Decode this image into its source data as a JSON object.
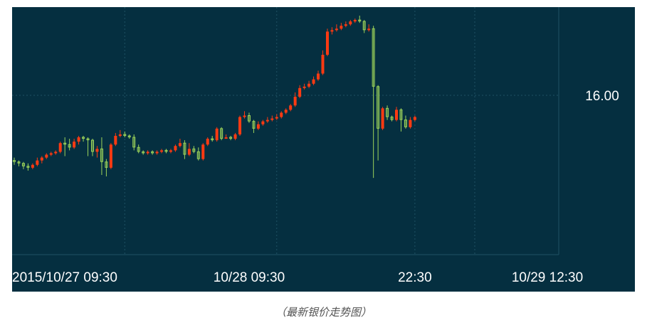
{
  "caption": "（最新银价走势图）",
  "chart_data": {
    "type": "candlestick",
    "title": "",
    "colors": {
      "background": "#052f40",
      "up": "#ff3a12",
      "down": "#9cd35a",
      "grid": "#1f5263",
      "text": "#ffffff"
    },
    "y_ticks": [
      16.0
    ],
    "y_tick_labels": [
      "16.00"
    ],
    "ylim": [
      14.9,
      16.55
    ],
    "grid": true,
    "x_tick_labels": [
      "2015/10/27 09:30",
      "10/28 09:30",
      "22:30",
      "10/29 12:30"
    ],
    "x_tick_index": [
      0,
      51,
      87,
      111
    ],
    "x_gridline_index": [
      24,
      57,
      87,
      100
    ],
    "candles": [
      [
        15.55,
        15.54,
        15.57,
        15.52
      ],
      [
        15.54,
        15.53,
        15.55,
        15.51
      ],
      [
        15.53,
        15.51,
        15.54,
        15.49
      ],
      [
        15.51,
        15.5,
        15.53,
        15.48
      ],
      [
        15.5,
        15.52,
        15.53,
        15.49
      ],
      [
        15.52,
        15.55,
        15.57,
        15.51
      ],
      [
        15.55,
        15.57,
        15.58,
        15.53
      ],
      [
        15.57,
        15.59,
        15.6,
        15.56
      ],
      [
        15.59,
        15.6,
        15.61,
        15.58
      ],
      [
        15.6,
        15.61,
        15.62,
        15.59
      ],
      [
        15.61,
        15.67,
        15.68,
        15.6
      ],
      [
        15.67,
        15.66,
        15.71,
        15.58
      ],
      [
        15.66,
        15.64,
        15.7,
        15.62
      ],
      [
        15.64,
        15.68,
        15.7,
        15.63
      ],
      [
        15.68,
        15.71,
        15.72,
        15.66
      ],
      [
        15.71,
        15.7,
        15.72,
        15.68
      ],
      [
        15.7,
        15.69,
        15.71,
        15.58
      ],
      [
        15.69,
        15.61,
        15.7,
        15.58
      ],
      [
        15.61,
        15.63,
        15.65,
        15.57
      ],
      [
        15.63,
        15.54,
        15.71,
        15.45
      ],
      [
        15.54,
        15.5,
        15.56,
        15.44
      ],
      [
        15.5,
        15.66,
        15.67,
        15.49
      ],
      [
        15.66,
        15.72,
        15.74,
        15.65
      ],
      [
        15.72,
        15.73,
        15.76,
        15.71
      ],
      [
        15.73,
        15.72,
        15.75,
        15.71
      ],
      [
        15.72,
        15.71,
        15.73,
        15.7
      ],
      [
        15.71,
        15.64,
        15.73,
        15.62
      ],
      [
        15.64,
        15.61,
        15.66,
        15.6
      ],
      [
        15.61,
        15.6,
        15.62,
        15.59
      ],
      [
        15.6,
        15.61,
        15.62,
        15.59
      ],
      [
        15.61,
        15.6,
        15.62,
        15.59
      ],
      [
        15.6,
        15.61,
        15.62,
        15.59
      ],
      [
        15.61,
        15.62,
        15.63,
        15.6
      ],
      [
        15.62,
        15.61,
        15.63,
        15.6
      ],
      [
        15.61,
        15.62,
        15.63,
        15.6
      ],
      [
        15.62,
        15.65,
        15.66,
        15.61
      ],
      [
        15.65,
        15.67,
        15.7,
        15.64
      ],
      [
        15.67,
        15.59,
        15.69,
        15.56
      ],
      [
        15.59,
        15.63,
        15.67,
        15.58
      ],
      [
        15.63,
        15.61,
        15.65,
        15.6
      ],
      [
        15.61,
        15.56,
        15.64,
        15.55
      ],
      [
        15.56,
        15.66,
        15.67,
        15.55
      ],
      [
        15.66,
        15.7,
        15.71,
        15.65
      ],
      [
        15.7,
        15.69,
        15.72,
        15.68
      ],
      [
        15.69,
        15.77,
        15.78,
        15.68
      ],
      [
        15.77,
        15.7,
        15.78,
        15.69
      ],
      [
        15.7,
        15.71,
        15.73,
        15.7
      ],
      [
        15.71,
        15.7,
        15.72,
        15.69
      ],
      [
        15.7,
        15.73,
        15.74,
        15.69
      ],
      [
        15.73,
        15.85,
        15.86,
        15.72
      ],
      [
        15.85,
        15.86,
        15.89,
        15.84
      ],
      [
        15.86,
        15.82,
        15.88,
        15.81
      ],
      [
        15.82,
        15.77,
        15.83,
        15.74
      ],
      [
        15.77,
        15.8,
        15.82,
        15.76
      ],
      [
        15.8,
        15.82,
        15.83,
        15.79
      ],
      [
        15.82,
        15.83,
        15.85,
        15.81
      ],
      [
        15.83,
        15.84,
        15.86,
        15.82
      ],
      [
        15.84,
        15.85,
        15.87,
        15.83
      ],
      [
        15.85,
        15.88,
        15.89,
        15.84
      ],
      [
        15.88,
        15.9,
        15.91,
        15.87
      ],
      [
        15.9,
        15.93,
        15.94,
        15.89
      ],
      [
        15.93,
        15.99,
        16.02,
        15.92
      ],
      [
        15.99,
        16.05,
        16.07,
        15.98
      ],
      [
        16.05,
        16.06,
        16.08,
        16.04
      ],
      [
        16.06,
        16.08,
        16.1,
        16.05
      ],
      [
        16.08,
        16.11,
        16.13,
        16.07
      ],
      [
        16.11,
        16.15,
        16.17,
        16.1
      ],
      [
        16.15,
        16.28,
        16.31,
        16.14
      ],
      [
        16.28,
        16.44,
        16.46,
        16.27
      ],
      [
        16.44,
        16.45,
        16.47,
        16.42
      ],
      [
        16.45,
        16.46,
        16.49,
        16.44
      ],
      [
        16.46,
        16.48,
        16.5,
        16.45
      ],
      [
        16.48,
        16.49,
        16.51,
        16.47
      ],
      [
        16.49,
        16.51,
        16.52,
        16.48
      ],
      [
        16.51,
        16.52,
        16.53,
        16.5
      ],
      [
        16.52,
        16.51,
        16.55,
        16.5
      ],
      [
        16.51,
        16.45,
        16.52,
        16.43
      ],
      [
        16.45,
        16.46,
        16.49,
        16.44
      ],
      [
        16.46,
        16.06,
        16.48,
        15.43
      ],
      [
        16.06,
        15.77,
        16.07,
        15.55
      ],
      [
        15.77,
        15.91,
        15.92,
        15.76
      ],
      [
        15.91,
        15.85,
        15.93,
        15.83
      ],
      [
        15.85,
        15.83,
        15.86,
        15.82
      ],
      [
        15.83,
        15.9,
        15.92,
        15.82
      ],
      [
        15.9,
        15.83,
        15.91,
        15.75
      ],
      [
        15.83,
        15.78,
        15.86,
        15.77
      ],
      [
        15.78,
        15.83,
        15.85,
        15.77
      ],
      [
        15.83,
        15.85,
        15.86,
        15.82
      ]
    ]
  }
}
